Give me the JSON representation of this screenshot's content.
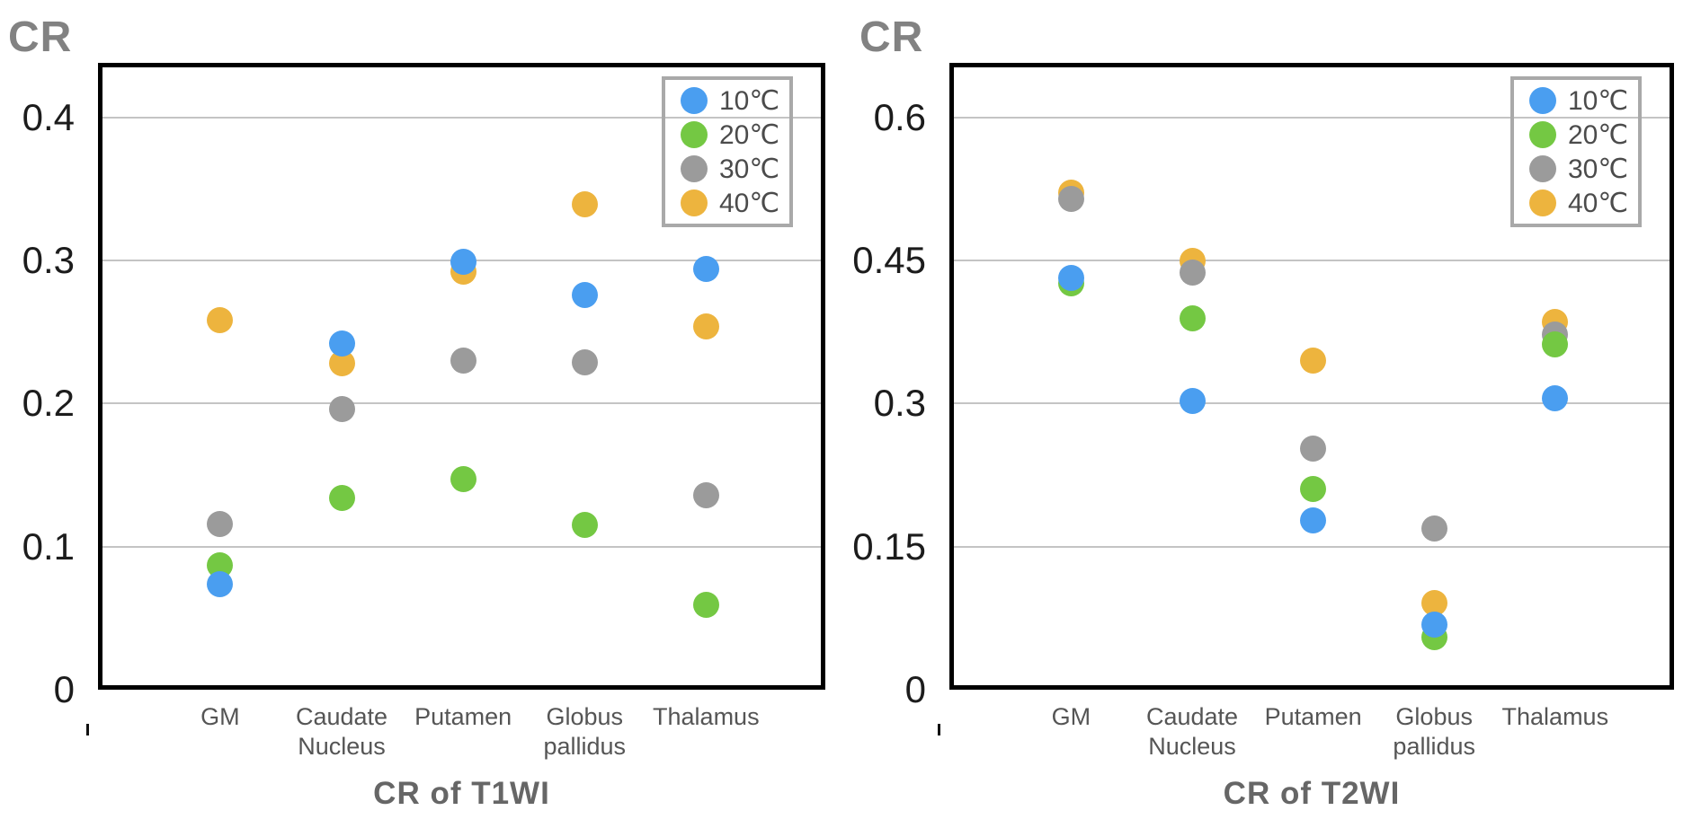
{
  "page": {
    "background": "#ffffff"
  },
  "colors": {
    "series_blue": "#4a9ef0",
    "series_green": "#74c843",
    "series_gray": "#9b9b9b",
    "series_orange": "#edb43e",
    "gridline": "#c4c4c4",
    "axis_frame": "#000000",
    "tick_text": "#1c1c1c",
    "category_text": "#555555",
    "title_text": "#666666",
    "cr_label_text": "#828282",
    "legend_border": "#a9a9a9",
    "legend_text": "#4b4b4b"
  },
  "legend": {
    "items": [
      {
        "label": "10℃",
        "color": "#4a9ef0"
      },
      {
        "label": "20℃",
        "color": "#74c843"
      },
      {
        "label": "30℃",
        "color": "#9b9b9b"
      },
      {
        "label": "40℃",
        "color": "#edb43e"
      }
    ]
  },
  "chart_data": [
    {
      "type": "scatter",
      "title": "CR of T1WI",
      "y_axis_label": "CR",
      "xlabel": "",
      "ylabel": "CR",
      "grid": true,
      "legend_position": "top-right",
      "categories": [
        "GM",
        "Caudate Nucleus",
        "Putamen",
        "Globus pallidus",
        "Thalamus"
      ],
      "y_ticks": [
        {
          "value": 0,
          "label": "0"
        },
        {
          "value": 0.1,
          "label": "0.1"
        },
        {
          "value": 0.2,
          "label": "0.2"
        },
        {
          "value": 0.3,
          "label": "0.3"
        },
        {
          "value": 0.4,
          "label": "0.4"
        }
      ],
      "ylim": [
        0,
        0.438
      ],
      "series": [
        {
          "name": "10℃",
          "color": "#4a9ef0",
          "values": [
            0.074,
            0.242,
            0.299,
            0.276,
            0.294
          ]
        },
        {
          "name": "20℃",
          "color": "#74c843",
          "values": [
            0.087,
            0.134,
            0.147,
            0.115,
            0.059
          ]
        },
        {
          "name": "30℃",
          "color": "#9b9b9b",
          "values": [
            0.116,
            0.196,
            0.23,
            0.229,
            0.136
          ]
        },
        {
          "name": "40℃",
          "color": "#edb43e",
          "values": [
            0.258,
            0.228,
            0.292,
            0.339,
            0.254
          ]
        }
      ]
    },
    {
      "type": "scatter",
      "title": "CR of T2WI",
      "y_axis_label": "CR",
      "xlabel": "",
      "ylabel": "CR",
      "grid": true,
      "legend_position": "top-right",
      "categories": [
        "GM",
        "Caudate Nucleus",
        "Putamen",
        "Globus pallidus",
        "Thalamus"
      ],
      "y_ticks": [
        {
          "value": 0,
          "label": "0"
        },
        {
          "value": 0.15,
          "label": "0.15"
        },
        {
          "value": 0.3,
          "label": "0.3"
        },
        {
          "value": 0.45,
          "label": "0.45"
        },
        {
          "value": 0.6,
          "label": "0.6"
        }
      ],
      "ylim": [
        0,
        0.657
      ],
      "series": [
        {
          "name": "10℃",
          "color": "#4a9ef0",
          "values": [
            0.432,
            0.303,
            0.177,
            0.068,
            0.305
          ]
        },
        {
          "name": "20℃",
          "color": "#74c843",
          "values": [
            0.426,
            0.389,
            0.21,
            0.055,
            0.362
          ]
        },
        {
          "name": "30℃",
          "color": "#9b9b9b",
          "values": [
            0.514,
            0.437,
            0.253,
            0.169,
            0.372
          ]
        },
        {
          "name": "40℃",
          "color": "#edb43e",
          "values": [
            0.521,
            0.449,
            0.345,
            0.091,
            0.385
          ]
        }
      ]
    }
  ]
}
